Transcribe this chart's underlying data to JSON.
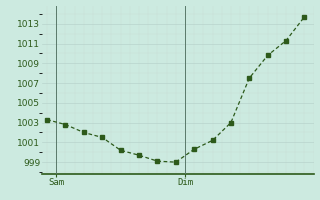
{
  "x": [
    0,
    1,
    2,
    3,
    4,
    5,
    6,
    7,
    8,
    9,
    10,
    11,
    12,
    13,
    14
  ],
  "y": [
    1003.3,
    1002.8,
    1002.0,
    1001.5,
    1000.2,
    999.7,
    999.1,
    999.0,
    1000.3,
    1001.2,
    1003.0,
    1007.5,
    1009.8,
    1011.3,
    1013.7
  ],
  "xtick_positions": [
    0.5,
    7.5
  ],
  "xtick_labels": [
    "Sam",
    "Dim"
  ],
  "vline_positions": [
    0.5,
    7.5
  ],
  "yticks": [
    999,
    1001,
    1003,
    1005,
    1007,
    1009,
    1011,
    1013
  ],
  "ylim": [
    997.8,
    1014.8
  ],
  "xlim": [
    -0.3,
    14.5
  ],
  "line_color": "#2d5a1b",
  "bg_color": "#cceae0",
  "grid_color_major": "#b8d4cc",
  "grid_color_minor": "#c8ddd6",
  "vline_color": "#5a7a6a",
  "bottom_spine_color": "#2d5a1b",
  "tick_label_color": "#2d5a1b",
  "tick_fontsize": 6.5
}
